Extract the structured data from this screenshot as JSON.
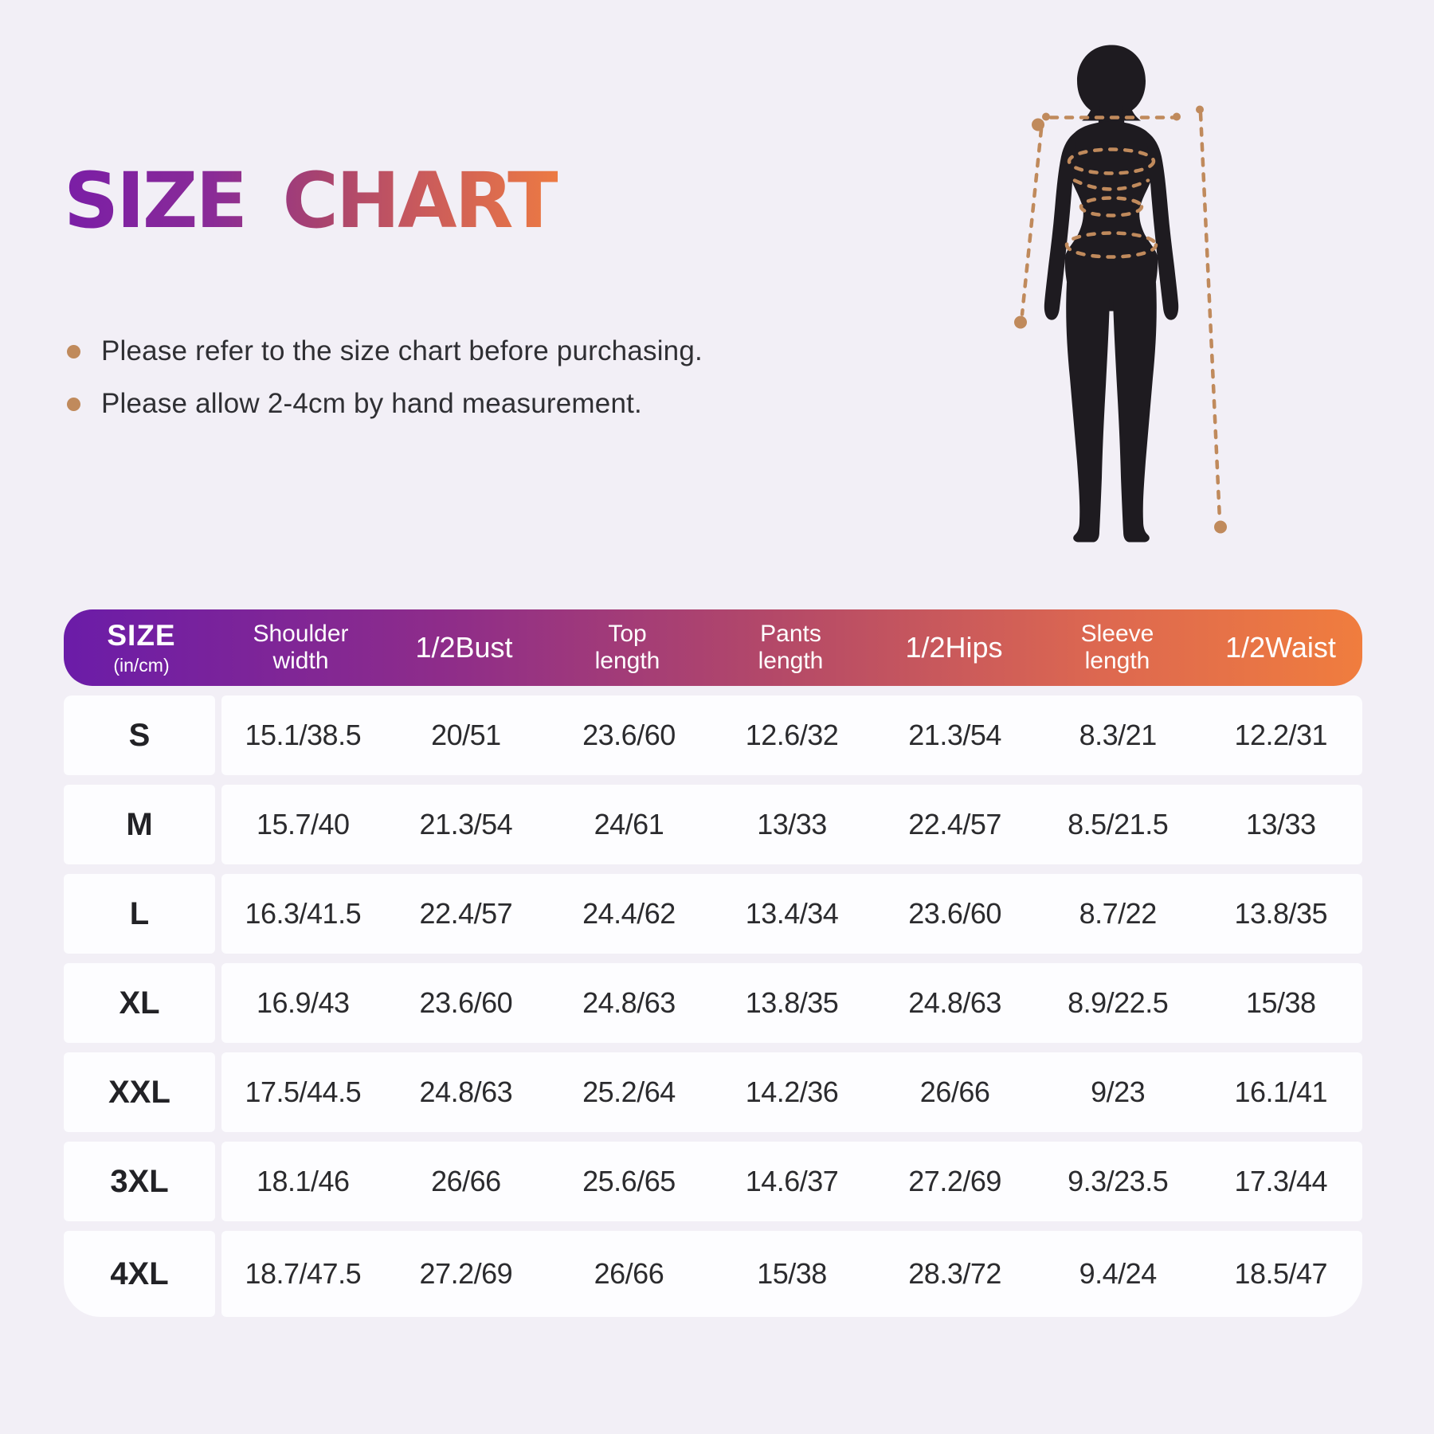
{
  "title": "SIZE CHART",
  "notes": [
    {
      "text": "Please refer to the size chart before purchasing."
    },
    {
      "text": "Please allow 2-4cm by hand measurement."
    }
  ],
  "figure": {
    "icon": "female-body-measurement-silhouette"
  },
  "table": {
    "columns": [
      {
        "label": "SIZE",
        "sub": "(in/cm)"
      },
      {
        "label": "Shoulder\nwidth"
      },
      {
        "label": "1/2Bust"
      },
      {
        "label": "Top\nlength"
      },
      {
        "label": "Pants\nlength"
      },
      {
        "label": "1/2Hips"
      },
      {
        "label": "Sleeve\nlength"
      },
      {
        "label": "1/2Waist"
      }
    ],
    "rows": [
      {
        "size": "S",
        "values": [
          "15.1/38.5",
          "20/51",
          "23.6/60",
          "12.6/32",
          "21.3/54",
          "8.3/21",
          "12.2/31"
        ]
      },
      {
        "size": "M",
        "values": [
          "15.7/40",
          "21.3/54",
          "24/61",
          "13/33",
          "22.4/57",
          "8.5/21.5",
          "13/33"
        ]
      },
      {
        "size": "L",
        "values": [
          "16.3/41.5",
          "22.4/57",
          "24.4/62",
          "13.4/34",
          "23.6/60",
          "8.7/22",
          "13.8/35"
        ]
      },
      {
        "size": "XL",
        "values": [
          "16.9/43",
          "23.6/60",
          "24.8/63",
          "13.8/35",
          "24.8/63",
          "8.9/22.5",
          "15/38"
        ]
      },
      {
        "size": "XXL",
        "values": [
          "17.5/44.5",
          "24.8/63",
          "25.2/64",
          "14.2/36",
          "26/66",
          "9/23",
          "16.1/41"
        ]
      },
      {
        "size": "3XL",
        "values": [
          "18.1/46",
          "26/66",
          "25.6/65",
          "14.6/37",
          "27.2/69",
          "9.3/23.5",
          "17.3/44"
        ]
      },
      {
        "size": "4XL",
        "values": [
          "18.7/47.5",
          "27.2/69",
          "26/66",
          "15/38",
          "28.3/72",
          "9.4/24",
          "18.5/47"
        ]
      }
    ]
  },
  "colors": {
    "background": "#F2EFF6",
    "title_gradient": [
      "#7A1EA6",
      "#A8436F",
      "#EC7A43"
    ],
    "header_gradient": [
      "#6B1CA8",
      "#B44968",
      "#F07D3E"
    ],
    "bullet_dot": "#C08A5C",
    "figure_silhouette": "#1E1B20",
    "figure_measure_lines": "#C08A5C",
    "row_background": "#FDFDFF",
    "text_dark": "#2B2B2E"
  }
}
